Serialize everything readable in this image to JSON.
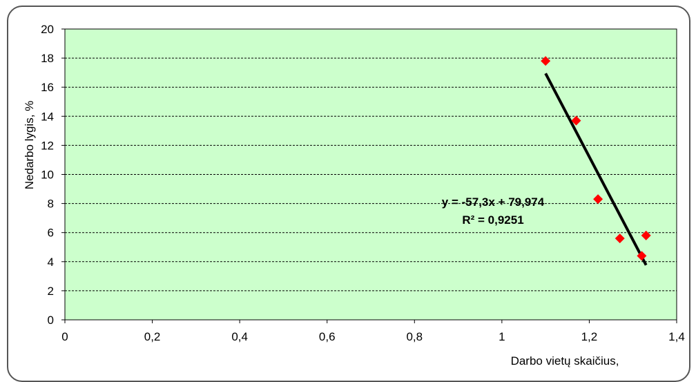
{
  "chart_data": {
    "type": "scatter",
    "title": "",
    "xlabel": "Darbo vietų skaičius,",
    "ylabel": "Nedarbo lygis, %",
    "xlim": [
      0,
      1.4
    ],
    "ylim": [
      0,
      20
    ],
    "x_ticks": [
      "0",
      "0,2",
      "0,4",
      "0,6",
      "0,8",
      "1",
      "1,2",
      "1,4"
    ],
    "y_ticks": [
      "0",
      "2",
      "4",
      "6",
      "8",
      "10",
      "12",
      "14",
      "16",
      "18",
      "20"
    ],
    "grid": "horizontal dashed",
    "plot_background": "#ccffcc",
    "series": [
      {
        "points": [
          {
            "x": 1.1,
            "y": 17.8
          },
          {
            "x": 1.17,
            "y": 13.7
          },
          {
            "x": 1.22,
            "y": 8.3
          },
          {
            "x": 1.27,
            "y": 5.6
          },
          {
            "x": 1.32,
            "y": 4.4
          },
          {
            "x": 1.33,
            "y": 5.8
          }
        ],
        "color": "#ff0000",
        "marker": "diamond"
      }
    ],
    "trendline": {
      "slope": -57.3,
      "intercept": 79.974,
      "x_range": [
        1.1,
        1.33
      ],
      "color": "#000000",
      "equation": "y = -57,3x + 79,974",
      "r_squared": "R² = 0,9251"
    }
  }
}
